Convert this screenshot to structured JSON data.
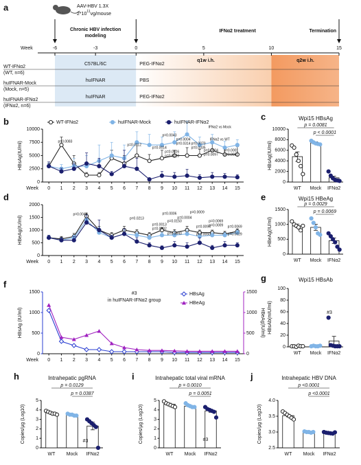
{
  "schematic": {
    "label": "a",
    "virus": "AAV-HBV 1.3X",
    "dose": [
      "2*10",
      "11",
      "vg/mouse"
    ],
    "modeling": [
      "Chronic HBV infection",
      "modeling"
    ],
    "treatment": "IFNα2 treatment",
    "termination": "Termination",
    "week_label": "Week",
    "weeks": [
      -6,
      -3,
      0,
      5,
      10,
      15
    ],
    "q1w": "q1w i.h.",
    "q2w": "q2w i.h.",
    "rows": [
      {
        "name": "WT-IFNα2",
        "sub": "(WT, n=6)",
        "strain": "C57BL/6C",
        "treatment": "PEG-IFNα2"
      },
      {
        "name": "huIFNAR-Mock",
        "sub": "(Mock, n=5)",
        "strain": "huIFNAR",
        "treatment": "PBS"
      },
      {
        "name": "huIFNAR-IFNα2",
        "sub": "(IFNα2, n=6)",
        "strain": "huIFNAR",
        "treatment": "PEG-IFNα2"
      }
    ]
  },
  "chart_data": [
    {
      "label": "b",
      "type": "line",
      "ylabel": "HBsAg(IU/ml)",
      "xlabel": "Week",
      "x": [
        0,
        1,
        2,
        3,
        4,
        5,
        6,
        7,
        8,
        9,
        10,
        11,
        12,
        13,
        14,
        15
      ],
      "xlim": [
        -0.5,
        15.5
      ],
      "xticks": [
        0,
        1,
        2,
        3,
        4,
        5,
        6,
        7,
        8,
        9,
        10,
        11,
        12,
        13,
        14,
        15
      ],
      "ylim": [
        0,
        10000
      ],
      "yticks": [
        0,
        2500,
        5000,
        7500,
        10000
      ],
      "legend": "top",
      "series": [
        {
          "name": "WT-IFNα2",
          "color": "#222222",
          "marker": "circle-open",
          "values": [
            3000,
            7000,
            3500,
            1300,
            1300,
            4500,
            3500,
            5000,
            4000,
            4500,
            5000,
            5000,
            5000,
            6000,
            5200,
            5200
          ],
          "errors": [
            500,
            1500,
            1500,
            500,
            500,
            1500,
            1500,
            2500,
            1200,
            1500,
            1000,
            1500,
            1200,
            1500,
            1200,
            1500
          ]
        },
        {
          "name": "huIFNAR-Mock",
          "color": "#80b4e6",
          "marker": "circle",
          "values": [
            3000,
            2500,
            3000,
            3000,
            4000,
            5000,
            4500,
            7500,
            7000,
            7000,
            7500,
            9000,
            7000,
            7500,
            6500,
            7000
          ],
          "errors": [
            600,
            800,
            1500,
            2000,
            3000,
            2500,
            2500,
            2000,
            2000,
            1500,
            2000,
            2500,
            1500,
            1500,
            1200,
            1000
          ]
        },
        {
          "name": "huIFNAR-IFNα2",
          "color": "#1b1f6e",
          "marker": "circle",
          "values": [
            3000,
            2000,
            2500,
            3500,
            3000,
            1500,
            3000,
            2500,
            500,
            1200,
            1000,
            1200,
            800,
            1000,
            1000,
            900
          ],
          "errors": [
            800,
            600,
            1000,
            2000,
            1500,
            500,
            3000,
            2000,
            300,
            800,
            800,
            1200,
            600,
            800,
            600,
            500
          ]
        }
      ],
      "annotations": [
        {
          "text": "p=0.0083",
          "color": "#2233cc"
        },
        {
          "text": "p=0.0112",
          "color": "#222222"
        },
        {
          "text": "p=0.0043",
          "color": "#222222"
        },
        {
          "text": "p=0.0004",
          "color": "#222222"
        },
        {
          "text": "p=0.0314",
          "color": "#2233cc"
        },
        {
          "text": "p=0.0014",
          "color": "#222222"
        },
        {
          "text": "p=0.0026",
          "color": "#222222"
        },
        {
          "text": "p=0.0020",
          "color": "#2233cc"
        },
        {
          "text": "p=0.0070",
          "color": "#222222"
        },
        {
          "text": "p=0.0335",
          "color": "#2233cc"
        },
        {
          "text": "p=0.0004",
          "color": "#222222"
        },
        {
          "text": "p=0.0097",
          "color": "#2233cc"
        },
        {
          "text": "p=0.0001",
          "color": "#222222"
        },
        {
          "text": "p=0.0031",
          "color": "#2233cc"
        },
        {
          "text": "IFNα2 vs Mock",
          "color": "#222222"
        },
        {
          "text": "IFNα2  vs WT",
          "color": "#2233cc"
        }
      ]
    },
    {
      "label": "c",
      "type": "bar",
      "title": "Wpi15 HBsAg",
      "ylabel": "HBsAg(IU/ml)",
      "categories": [
        "WT",
        "Mock",
        "IFNα2"
      ],
      "values": [
        4800,
        7400,
        800
      ],
      "errors": [
        900,
        200,
        300
      ],
      "points": [
        [
          6900,
          6500,
          5200,
          4000,
          3000,
          1500
        ],
        [
          7800,
          7500,
          7300,
          7200,
          7100
        ],
        [
          2000,
          1200,
          700,
          400,
          300,
          200
        ]
      ],
      "colors": [
        "#222222",
        "#80b4e6",
        "#1b1f6e"
      ],
      "ylim": [
        0,
        10000
      ],
      "yticks": [
        0,
        2000,
        4000,
        6000,
        8000,
        10000
      ],
      "p_values": [
        "p = 0.0081",
        "p < 0.0001"
      ]
    },
    {
      "label": "d",
      "type": "line",
      "ylabel": "HBeAg(IU/ml)",
      "xlabel": "Week",
      "x": [
        0,
        1,
        2,
        3,
        4,
        5,
        6,
        7,
        8,
        9,
        10,
        11,
        12,
        13,
        14,
        15
      ],
      "xlim": [
        -0.5,
        15.5
      ],
      "xticks": [
        0,
        1,
        2,
        3,
        4,
        5,
        6,
        7,
        8,
        9,
        10,
        11,
        12,
        13,
        14,
        15
      ],
      "ylim": [
        0,
        2000
      ],
      "yticks": [
        0,
        500,
        1000,
        1500,
        2000
      ],
      "series": [
        {
          "name": "WT-IFNα2",
          "color": "#222222",
          "marker": "circle-open",
          "values": [
            700,
            650,
            750,
            1550,
            1000,
            800,
            1000,
            900,
            800,
            1000,
            900,
            1000,
            900,
            900,
            850,
            950
          ],
          "errors": [
            80,
            100,
            120,
            120,
            150,
            100,
            150,
            120,
            100,
            100,
            120,
            150,
            100,
            100,
            100,
            100
          ]
        },
        {
          "name": "huIFNAR-Mock",
          "color": "#80b4e6",
          "marker": "circle",
          "values": [
            700,
            600,
            700,
            1400,
            900,
            700,
            850,
            800,
            700,
            800,
            800,
            850,
            750,
            800,
            800,
            900
          ],
          "errors": [
            80,
            80,
            100,
            200,
            200,
            100,
            150,
            100,
            100,
            100,
            150,
            150,
            100,
            100,
            100,
            100
          ]
        },
        {
          "name": "huIFNAR-IFNα2",
          "color": "#1b1f6e",
          "marker": "circle",
          "values": [
            700,
            600,
            600,
            1300,
            1000,
            700,
            850,
            550,
            400,
            300,
            400,
            350,
            500,
            300,
            400,
            400
          ],
          "errors": [
            100,
            100,
            150,
            300,
            400,
            100,
            200,
            150,
            100,
            80,
            150,
            150,
            200,
            100,
            150,
            100
          ]
        }
      ],
      "annotations": [
        {
          "text": "p=0.0046",
          "color": "#222222"
        },
        {
          "text": "p=0.0213",
          "color": "#2233cc"
        },
        {
          "text": "p=0.0006",
          "color": "#222222"
        },
        {
          "text": "p=0.0013",
          "color": "#222222"
        },
        {
          "text": "p=0.0002",
          "color": "#2233cc"
        },
        {
          "text": "p=0.0150",
          "color": "#222222"
        },
        {
          "text": "p=0.0343",
          "color": "#2233cc"
        },
        {
          "text": "p=0.0009",
          "color": "#222222"
        },
        {
          "text": "p=0.0004",
          "color": "#2233cc"
        },
        {
          "text": "p=0.0094",
          "color": "#222222"
        },
        {
          "text": "p=0.0050",
          "color": "#2233cc"
        },
        {
          "text": "p=0.0069",
          "color": "#222222"
        },
        {
          "text": "p=0.0009",
          "color": "#2233cc"
        },
        {
          "text": "p=0.0069",
          "color": "#222222"
        },
        {
          "text": "p=0.0029",
          "color": "#2233cc"
        }
      ]
    },
    {
      "label": "e",
      "type": "bar",
      "title": "Wpi15 HBeAg",
      "ylabel": "HBeAg(IU/ml)",
      "categories": [
        "WT",
        "Mock",
        "IFNα2"
      ],
      "values": [
        950,
        900,
        450
      ],
      "errors": [
        60,
        100,
        90
      ],
      "points": [
        [
          1100,
          1000,
          950,
          900,
          800,
          950
        ],
        [
          1200,
          1050,
          900,
          700,
          650
        ],
        [
          700,
          600,
          500,
          400,
          250,
          150
        ]
      ],
      "colors": [
        "#222222",
        "#80b4e6",
        "#1b1f6e"
      ],
      "ylim": [
        0,
        1500
      ],
      "yticks": [
        0,
        500,
        1000,
        1500
      ],
      "p_values": [
        "p = 0.0029",
        "p = 0.0069"
      ]
    },
    {
      "label": "f",
      "type": "line",
      "ylabel": "HBsAg (IU/ml)",
      "y2label": "HBeAg(IU/ml)",
      "xlabel": "Week",
      "x": [
        0,
        1,
        2,
        3,
        4,
        5,
        6,
        7,
        8,
        9,
        10,
        11,
        12,
        13,
        14,
        15
      ],
      "xlim": [
        -0.5,
        15.5
      ],
      "xticks": [
        0,
        1,
        2,
        3,
        4,
        5,
        6,
        7,
        8,
        9,
        10,
        11,
        12,
        13,
        14,
        15
      ],
      "ylim": [
        0,
        1500
      ],
      "yticks": [
        0,
        500,
        1000,
        1500
      ],
      "y2lim": [
        0,
        1500
      ],
      "y2ticks": [
        0,
        500,
        1000,
        1500
      ],
      "legend": "right",
      "ycolor": "#2b3fd1",
      "y2color": "#a020c0",
      "series": [
        {
          "name": "HBsAg",
          "color": "#2b3fd1",
          "marker": "diamond-open",
          "values": [
            1050,
            300,
            200,
            100,
            100,
            50,
            50,
            50,
            50,
            50,
            30,
            30,
            30,
            30,
            30,
            30
          ]
        },
        {
          "name": "HBeAg",
          "color": "#a020c0",
          "marker": "triangle",
          "axis": "y2",
          "values": [
            1180,
            400,
            350,
            450,
            550,
            250,
            150,
            100,
            80,
            80,
            70,
            60,
            60,
            60,
            60,
            60
          ]
        }
      ],
      "annotations": [
        {
          "text": "#3",
          "color": "#222222"
        },
        {
          "text": "in huIFNAR-IFNα2 group",
          "color": "#222222"
        }
      ]
    },
    {
      "label": "g",
      "type": "bar",
      "title": "Wpi15 HBsAb",
      "ylabel": "HBsAb(mIU/ml)",
      "categories": [
        "WT",
        "Mock",
        "IFNα2"
      ],
      "values": [
        1,
        1,
        10
      ],
      "errors": [
        0.5,
        0.3,
        8
      ],
      "points": [
        [
          1,
          1,
          0,
          2,
          1,
          1
        ],
        [
          1,
          2,
          1,
          1,
          2
        ],
        [
          50,
          3,
          2,
          1,
          1,
          1
        ]
      ],
      "colors": [
        "#222222",
        "#80b4e6",
        "#1b1f6e"
      ],
      "ylim": [
        0,
        100
      ],
      "yticks": [
        0,
        20,
        40,
        60,
        80,
        100
      ],
      "annotations": [
        "#3"
      ]
    },
    {
      "label": "h",
      "type": "bar",
      "title": "Intrahepatic pgRNA",
      "ylabel": "Copies/μg (Log10)",
      "categories": [
        "WT",
        "Mock",
        "IFNα2"
      ],
      "values": [
        3.7,
        3.5,
        2.3
      ],
      "errors": [
        0.08,
        0.05,
        0.4
      ],
      "points": [
        [
          3.9,
          3.8,
          3.7,
          3.6,
          3.6,
          3.5
        ],
        [
          3.6,
          3.5,
          3.5,
          3.4,
          3.4
        ],
        [
          3.0,
          2.8,
          2.6,
          2.4,
          2.2,
          0
        ]
      ],
      "colors": [
        "#222222",
        "#80b4e6",
        "#1b1f6e"
      ],
      "ylim": [
        0,
        5
      ],
      "yticks": [
        0,
        1,
        2,
        3,
        4,
        5
      ],
      "p_values": [
        "p = 0.0129",
        "p = 0.0387"
      ],
      "annotations": [
        "#3"
      ]
    },
    {
      "label": "i",
      "type": "bar",
      "title": "Intrahepatic total viral mRNA",
      "ylabel": "Copies/μg (Log10)",
      "categories": [
        "WT",
        "Mock",
        "IFNα2"
      ],
      "values": [
        4.6,
        4.4,
        3.9
      ],
      "errors": [
        0.1,
        0.08,
        0.15
      ],
      "points": [
        [
          4.9,
          4.7,
          4.6,
          4.5,
          4.4,
          4.3
        ],
        [
          4.7,
          4.5,
          4.4,
          4.3,
          4.3
        ],
        [
          4.3,
          4.1,
          4.0,
          3.9,
          3.8,
          3.2
        ]
      ],
      "colors": [
        "#222222",
        "#80b4e6",
        "#1b1f6e"
      ],
      "ylim": [
        0,
        5
      ],
      "yticks": [
        0,
        1,
        2,
        3,
        4,
        5
      ],
      "p_values": [
        "p = 0.0010",
        "p = 0.0051"
      ],
      "annotations": [
        "#3"
      ]
    },
    {
      "label": "j",
      "type": "bar",
      "title": "Intrahepatic HBV DNA",
      "ylabel": "Copies/μg (Log10)",
      "categories": [
        "WT",
        "Mock",
        "IFNα2"
      ],
      "values": [
        3.52,
        3.0,
        2.98
      ],
      "errors": [
        0.04,
        0.01,
        0.01
      ],
      "points": [
        [
          3.65,
          3.6,
          3.55,
          3.5,
          3.45,
          3.4
        ],
        [
          3.02,
          3.0,
          3.0,
          2.98,
          3.0
        ],
        [
          3.0,
          2.98,
          2.97,
          2.96,
          2.95,
          2.99
        ]
      ],
      "colors": [
        "#222222",
        "#80b4e6",
        "#1b1f6e"
      ],
      "ylim": [
        2.5,
        4
      ],
      "yticks": [
        2.5,
        {
          "value": 3,
          "label": "3.0"
        },
        3.5,
        {
          "value": 4,
          "label": "4.0"
        }
      ],
      "p_values": [
        "p <0.0001",
        "p <0.0001"
      ]
    }
  ]
}
